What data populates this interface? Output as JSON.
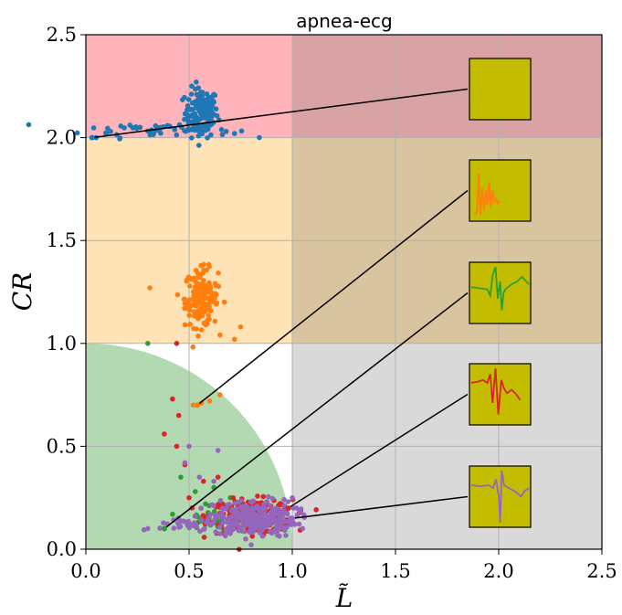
{
  "chart_data": {
    "type": "scatter",
    "title": "apnea-ecg",
    "xlabel": "L̃",
    "ylabel": "CR",
    "xlim": [
      0,
      2.5
    ],
    "ylim": [
      0,
      2.5
    ],
    "xticks": [
      "0.0",
      "0.5",
      "1.0",
      "1.5",
      "2.0",
      "2.5"
    ],
    "yticks": [
      "0.0",
      "0.5",
      "1.0",
      "1.5",
      "2.0",
      "2.5"
    ],
    "grid": true,
    "regions": [
      {
        "x0": 0,
        "x1": 1,
        "y0": 2,
        "y1": 2.5,
        "color": "#ffb3ba"
      },
      {
        "x0": 1,
        "x1": 2.5,
        "y0": 2,
        "y1": 2.5,
        "color": "#d9a3a6"
      },
      {
        "x0": 0,
        "x1": 1,
        "y0": 1,
        "y1": 2,
        "color": "#fde3b6"
      },
      {
        "x0": 1,
        "x1": 2.5,
        "y0": 1,
        "y1": 2,
        "color": "#d9c4a0"
      },
      {
        "x0": 1,
        "x1": 2.5,
        "y0": 0,
        "y1": 1,
        "color": "#d9d9d9"
      }
    ],
    "quarter_circle": {
      "radius": 1,
      "color": "#b3d9b3"
    },
    "series": [
      {
        "color": "#1f77b4",
        "clusters": [
          {
            "cx": 0.56,
            "cy": 2.12,
            "sx": 0.04,
            "sy": 0.06,
            "n": 150
          },
          {
            "cx": 0.35,
            "cy": 2.04,
            "sx": 0.18,
            "sy": 0.02,
            "n": 50
          }
        ],
        "points": [
          [
            0.05,
            2.0
          ],
          [
            0.12,
            2.03
          ],
          [
            0.72,
            2.02
          ],
          [
            0.68,
            2.03
          ]
        ],
        "inset_point": [
          0.03,
          2.0
        ],
        "inset_trace": [
          [
            0.5,
            0.5
          ]
        ]
      },
      {
        "color": "#ff7f0e",
        "clusters": [
          {
            "cx": 0.56,
            "cy": 1.22,
            "sx": 0.04,
            "sy": 0.07,
            "n": 160
          }
        ],
        "points": [
          [
            0.52,
            0.7
          ],
          [
            0.54,
            0.7
          ],
          [
            0.56,
            0.71
          ],
          [
            0.6,
            0.72
          ],
          [
            0.65,
            0.75
          ],
          [
            0.72,
            1.02
          ],
          [
            0.75,
            1.08
          ],
          [
            0.31,
            1.27
          ]
        ],
        "inset_point": [
          0.54,
          0.7
        ],
        "inset_trace": [
          [
            0.05,
            0.9
          ],
          [
            0.1,
            0.88
          ],
          [
            0.13,
            0.2
          ],
          [
            0.16,
            0.92
          ],
          [
            0.19,
            0.45
          ],
          [
            0.22,
            0.85
          ],
          [
            0.25,
            0.5
          ],
          [
            0.28,
            0.75
          ],
          [
            0.31,
            0.35
          ],
          [
            0.34,
            0.8
          ],
          [
            0.37,
            0.5
          ],
          [
            0.4,
            0.7
          ],
          [
            0.43,
            0.65
          ],
          [
            0.46,
            0.72
          ],
          [
            0.48,
            0.68
          ]
        ]
      },
      {
        "color": "#2ca02c",
        "clusters": [
          {
            "cx": 0.65,
            "cy": 0.13,
            "sx": 0.12,
            "sy": 0.025,
            "n": 40
          }
        ],
        "points": [
          [
            0.3,
            1.0
          ],
          [
            0.38,
            0.1
          ],
          [
            0.42,
            0.17
          ],
          [
            0.46,
            0.35
          ],
          [
            0.53,
            0.28
          ],
          [
            0.58,
            0.22
          ],
          [
            0.62,
            0.3
          ],
          [
            0.7,
            0.25
          ]
        ],
        "inset_point": [
          0.38,
          0.1
        ],
        "inset_trace": [
          [
            0.0,
            0.4
          ],
          [
            0.15,
            0.42
          ],
          [
            0.28,
            0.44
          ],
          [
            0.33,
            0.55
          ],
          [
            0.37,
            0.2
          ],
          [
            0.42,
            0.05
          ],
          [
            0.46,
            0.6
          ],
          [
            0.5,
            0.3
          ],
          [
            0.53,
            0.8
          ],
          [
            0.56,
            0.5
          ],
          [
            0.6,
            0.43
          ],
          [
            0.7,
            0.35
          ],
          [
            0.8,
            0.3
          ],
          [
            0.88,
            0.22
          ],
          [
            0.95,
            0.3
          ],
          [
            1.0,
            0.35
          ]
        ]
      },
      {
        "color": "#d62728",
        "clusters": [
          {
            "cx": 0.8,
            "cy": 0.16,
            "sx": 0.1,
            "sy": 0.04,
            "n": 220
          }
        ],
        "points": [
          [
            0.44,
            1.0
          ],
          [
            0.42,
            0.73
          ],
          [
            0.45,
            0.65
          ],
          [
            0.44,
            0.5
          ],
          [
            0.48,
            0.41
          ],
          [
            0.38,
            0.56
          ],
          [
            0.5,
            0.25
          ],
          [
            0.57,
            0.33
          ],
          [
            0.64,
            0.35
          ]
        ],
        "inset_point": [
          0.98,
          0.2
        ],
        "inset_trace": [
          [
            0.0,
            0.3
          ],
          [
            0.12,
            0.28
          ],
          [
            0.2,
            0.25
          ],
          [
            0.28,
            0.3
          ],
          [
            0.33,
            0.15
          ],
          [
            0.37,
            0.65
          ],
          [
            0.42,
            0.05
          ],
          [
            0.47,
            0.85
          ],
          [
            0.52,
            0.25
          ],
          [
            0.57,
            0.4
          ],
          [
            0.62,
            0.48
          ],
          [
            0.7,
            0.42
          ],
          [
            0.78,
            0.5
          ],
          [
            0.85,
            0.6
          ]
        ]
      },
      {
        "color": "#9467bd",
        "clusters": [
          {
            "cx": 0.82,
            "cy": 0.15,
            "sx": 0.1,
            "sy": 0.045,
            "n": 260
          },
          {
            "cx": 0.55,
            "cy": 0.12,
            "sx": 0.12,
            "sy": 0.02,
            "n": 40
          }
        ],
        "points": [
          [
            0.3,
            0.1
          ],
          [
            0.48,
            0.42
          ],
          [
            0.5,
            0.5
          ],
          [
            0.55,
            0.35
          ],
          [
            0.64,
            0.48
          ],
          [
            0.62,
            0.33
          ],
          [
            1.05,
            0.1
          ],
          [
            1.0,
            0.25
          ],
          [
            1.02,
            0.2
          ]
        ],
        "inset_point": [
          1.0,
          0.15
        ],
        "inset_trace": [
          [
            0.0,
            0.3
          ],
          [
            0.15,
            0.32
          ],
          [
            0.3,
            0.3
          ],
          [
            0.38,
            0.35
          ],
          [
            0.43,
            0.2
          ],
          [
            0.48,
            0.5
          ],
          [
            0.5,
            0.95
          ],
          [
            0.53,
            0.05
          ],
          [
            0.57,
            0.3
          ],
          [
            0.65,
            0.35
          ],
          [
            0.78,
            0.42
          ],
          [
            0.86,
            0.5
          ],
          [
            0.93,
            0.4
          ],
          [
            1.0,
            0.35
          ]
        ]
      }
    ]
  }
}
